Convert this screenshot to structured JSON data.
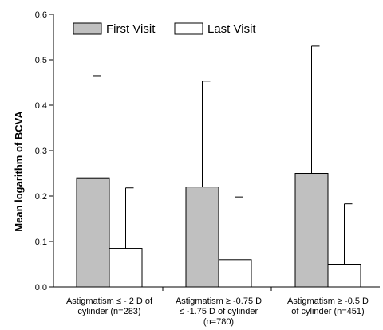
{
  "chart_data": {
    "type": "bar",
    "title": "",
    "xlabel": "",
    "ylabel": "Mean logarithm of BCVA",
    "ylim": [
      0,
      0.6
    ],
    "yticks": [
      0.0,
      0.1,
      0.2,
      0.3,
      0.4,
      0.5,
      0.6
    ],
    "ytick_labels": [
      "0.0",
      "0.1",
      "0.2",
      "0.3",
      "0.4",
      "0.5",
      "0.6"
    ],
    "grid": false,
    "legend_position": "top-left",
    "categories": [
      [
        "Astigmatism ≤ - 2 D of",
        "cylinder (n=283)"
      ],
      [
        "Astigmatism ≥ -0.75 D",
        "≤ -1.75 D of cylinder",
        "(n=780)"
      ],
      [
        "Astigmatism ≥ -0.5 D",
        "of cylinder (n=451)"
      ]
    ],
    "series": [
      {
        "name": "First Visit",
        "color": "#c0c0c0",
        "values": [
          0.24,
          0.22,
          0.25
        ],
        "error_upper": [
          0.465,
          0.453,
          0.53
        ]
      },
      {
        "name": "Last Visit",
        "color": "#ffffff",
        "values": [
          0.085,
          0.06,
          0.05
        ],
        "error_upper": [
          0.218,
          0.198,
          0.183
        ]
      }
    ]
  }
}
